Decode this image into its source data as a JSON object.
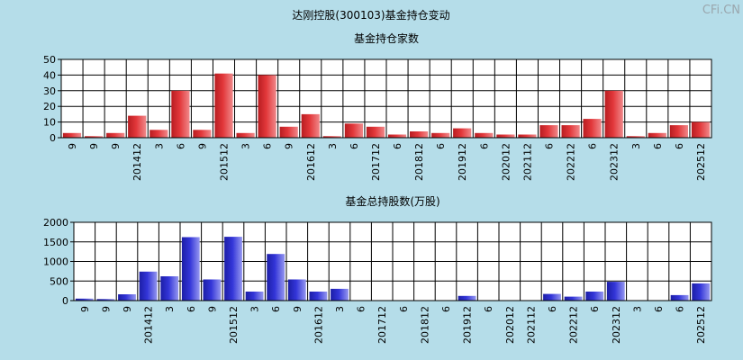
{
  "title": "达刚控股(300103)基金持仓变动",
  "watermark": "CFi.CN",
  "colors": {
    "background": "#b5dde9",
    "plot_bg": "#ffffff",
    "grid": "#000000",
    "red_bar": "#e2373a",
    "blue_bar": "#3335d8"
  },
  "chart_data": [
    {
      "type": "bar",
      "title": "基金持仓家数",
      "ylim": [
        0,
        50
      ],
      "yticks": [
        0,
        10,
        20,
        30,
        40,
        50
      ],
      "grid": true,
      "categories": [
        "9",
        "9",
        "9",
        "201412",
        "3",
        "6",
        "9",
        "201512",
        "3",
        "6",
        "9",
        "201612",
        "3",
        "6",
        "201712",
        "6",
        "201812",
        "6",
        "201912",
        "6",
        "202012",
        "202112",
        "6",
        "202212",
        "6",
        "202312",
        "3",
        "6",
        "6",
        "202512"
      ],
      "values": [
        3,
        1,
        3,
        14,
        5,
        30,
        5,
        41,
        3,
        40,
        7,
        15,
        1,
        9,
        7,
        2,
        4,
        3,
        6,
        3,
        2,
        2,
        8,
        8,
        12,
        30,
        1,
        3,
        8,
        10
      ]
    },
    {
      "type": "bar",
      "title": "基金总持股数(万股)",
      "ylim": [
        0,
        2000
      ],
      "yticks": [
        0,
        500,
        1000,
        1500,
        2000
      ],
      "grid": true,
      "categories": [
        "9",
        "9",
        "9",
        "201412",
        "3",
        "6",
        "9",
        "201512",
        "3",
        "6",
        "9",
        "201612",
        "3",
        "6",
        "201712",
        "6",
        "201812",
        "6",
        "201912",
        "6",
        "202012",
        "202112",
        "6",
        "202212",
        "6",
        "202312",
        "3",
        "6",
        "6",
        "202512"
      ],
      "values": [
        50,
        40,
        160,
        740,
        620,
        1620,
        540,
        1630,
        230,
        1190,
        540,
        230,
        300,
        10,
        10,
        10,
        10,
        10,
        120,
        10,
        10,
        10,
        170,
        100,
        230,
        480,
        10,
        10,
        140,
        440
      ]
    }
  ]
}
